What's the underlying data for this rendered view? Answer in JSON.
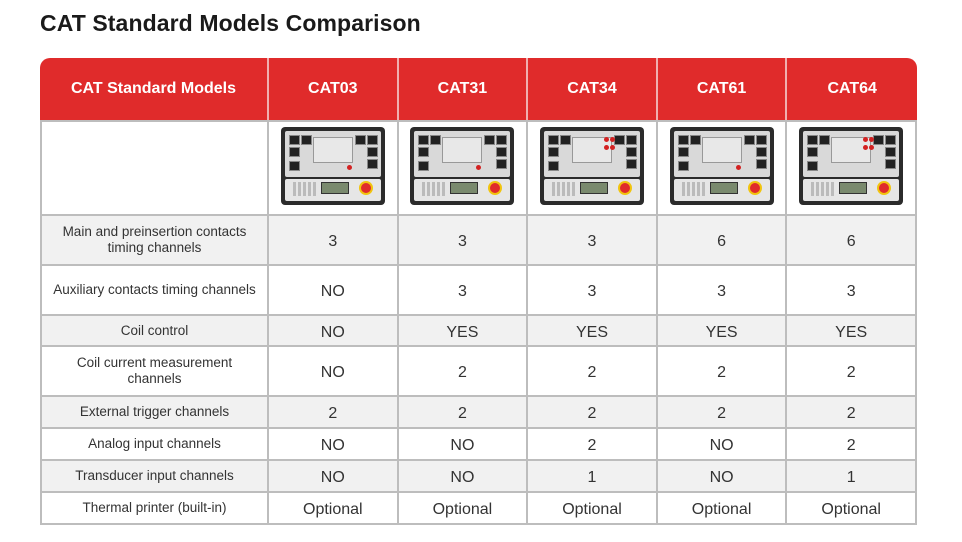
{
  "title": "CAT Standard Models Comparison",
  "table": {
    "header_label": "CAT Standard Models",
    "models": [
      "CAT03",
      "CAT31",
      "CAT34",
      "CAT61",
      "CAT64"
    ],
    "rows": [
      {
        "feature": "Main and preinsertion contacts timing channels",
        "values": [
          "3",
          "3",
          "3",
          "6",
          "6"
        ]
      },
      {
        "feature": "Auxiliary contacts timing channels",
        "values": [
          "NO",
          "3",
          "3",
          "3",
          "3"
        ]
      },
      {
        "feature": "Coil control",
        "values": [
          "NO",
          "YES",
          "YES",
          "YES",
          "YES"
        ]
      },
      {
        "feature": "Coil current measurement channels",
        "values": [
          "NO",
          "2",
          "2",
          "2",
          "2"
        ]
      },
      {
        "feature": "External trigger channels",
        "values": [
          "2",
          "2",
          "2",
          "2",
          "2"
        ]
      },
      {
        "feature": "Analog input channels",
        "values": [
          "NO",
          "NO",
          "2",
          "NO",
          "2"
        ]
      },
      {
        "feature": "Transducer input channels",
        "values": [
          "NO",
          "NO",
          "1",
          "NO",
          "1"
        ]
      },
      {
        "feature": "Thermal printer (built-in)",
        "values": [
          "Optional",
          "Optional",
          "Optional",
          "Optional",
          "Optional"
        ]
      }
    ]
  },
  "colors": {
    "header_bg": "#e02b2b",
    "header_text": "#ffffff",
    "grid": "#bdbdbd",
    "shaded_row": "#f1f1f1"
  }
}
